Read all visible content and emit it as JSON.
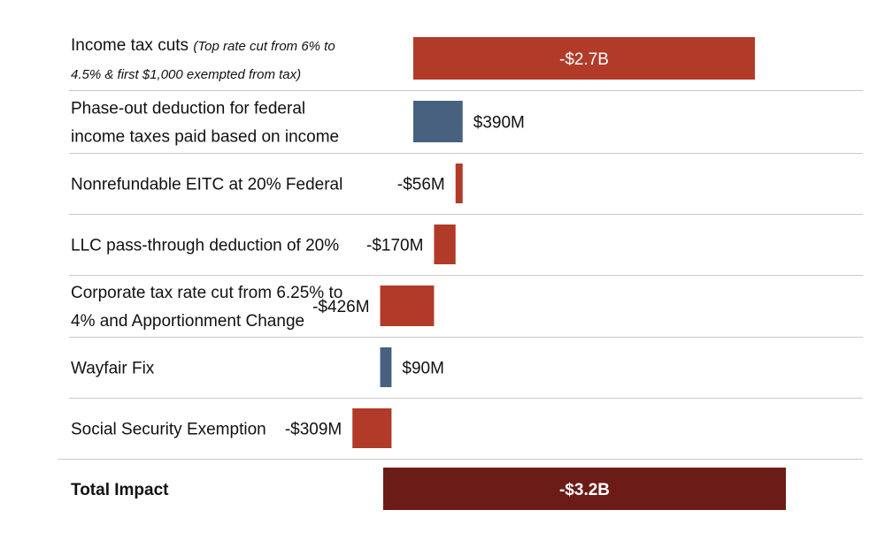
{
  "chart_data": {
    "type": "bar",
    "orientation": "horizontal",
    "title": "",
    "xlabel": "",
    "ylabel": "",
    "units": "USD",
    "xlim": [
      -3200000000,
      450000000
    ],
    "colors": {
      "negative": "#b23a29",
      "positive": "#47617f",
      "total": "#6b1c17",
      "separator": "#c9c9c9"
    },
    "rows": [
      {
        "lines": [
          {
            "text": "Income tax cuts ",
            "note": "(Top rate cut from 6% to"
          },
          {
            "text": "",
            "note": "4.5% & first $1,000 exempted from tax)"
          }
        ],
        "value": -2700000000,
        "value_label": "-$2.7B",
        "label_inside": true
      },
      {
        "lines": [
          {
            "text": "Phase-out deduction for federal"
          },
          {
            "text": "income taxes paid based on income"
          }
        ],
        "value": 390000000,
        "value_label": "$390M"
      },
      {
        "lines": [
          {
            "text": "Nonrefundable EITC at 20% Federal"
          }
        ],
        "value": -56000000,
        "value_label": "-$56M"
      },
      {
        "lines": [
          {
            "text": "LLC pass-through deduction of 20%"
          }
        ],
        "value": -170000000,
        "value_label": "-$170M"
      },
      {
        "lines": [
          {
            "text": "Corporate tax rate cut from 6.25% to"
          },
          {
            "text": "4% and Apportionment Change"
          }
        ],
        "value": -426000000,
        "value_label": "-$426M"
      },
      {
        "lines": [
          {
            "text": "Wayfair Fix"
          }
        ],
        "value": 90000000,
        "value_label": "$90M"
      },
      {
        "lines": [
          {
            "text": "Social Security Exemption"
          }
        ],
        "value": -309000000,
        "value_label": "-$309M"
      }
    ],
    "total": {
      "label": "Total Impact",
      "value": -3200000000,
      "value_label": "-$3.2B"
    }
  }
}
